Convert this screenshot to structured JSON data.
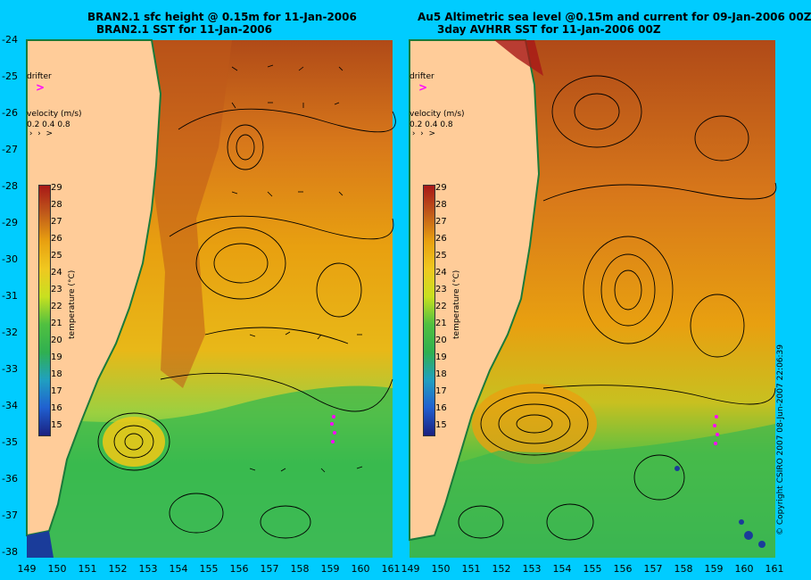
{
  "left": {
    "title1": "BRAN2.1 sfc height @ 0.15m for 11-Jan-2006",
    "title2": "BRAN2.1 SST for 11-Jan-2006"
  },
  "right": {
    "title1": "Au5 Altimetric sea level  @0.15m and current for 09-Jan-2006 00Z",
    "title2": "3day AVHRR SST for 11-Jan-2006 00Z"
  },
  "legend": {
    "drifter": "drifter",
    "velocity": "velocity (m/s)",
    "velocity_scale": "0.2 0.4 0.8",
    "temperature_label": "temperature (°C)",
    "temperature_ticks": [
      "29",
      "28",
      "27",
      "26",
      "25",
      "24",
      "23",
      "22",
      "21",
      "20",
      "19",
      "18",
      "17",
      "16",
      "15"
    ]
  },
  "axes": {
    "lat_ticks": [
      "-24",
      "-25",
      "-26",
      "-27",
      "-28",
      "-29",
      "-30",
      "-31",
      "-32",
      "-33",
      "-34",
      "-35",
      "-36",
      "-37",
      "-38"
    ],
    "lon_ticks": [
      "149",
      "150",
      "151",
      "152",
      "153",
      "154",
      "155",
      "156",
      "157",
      "158",
      "159",
      "160",
      "161"
    ]
  },
  "colors": {
    "background": "#00ccff",
    "land": "#ffcc99",
    "warm": "#c0501a",
    "mid": "#e8a010",
    "cool": "#2db54d",
    "cold": "#1a3c9a"
  },
  "copyright": "© Copyright CSIRO 2007  08-Jun-2007 22:06:39"
}
